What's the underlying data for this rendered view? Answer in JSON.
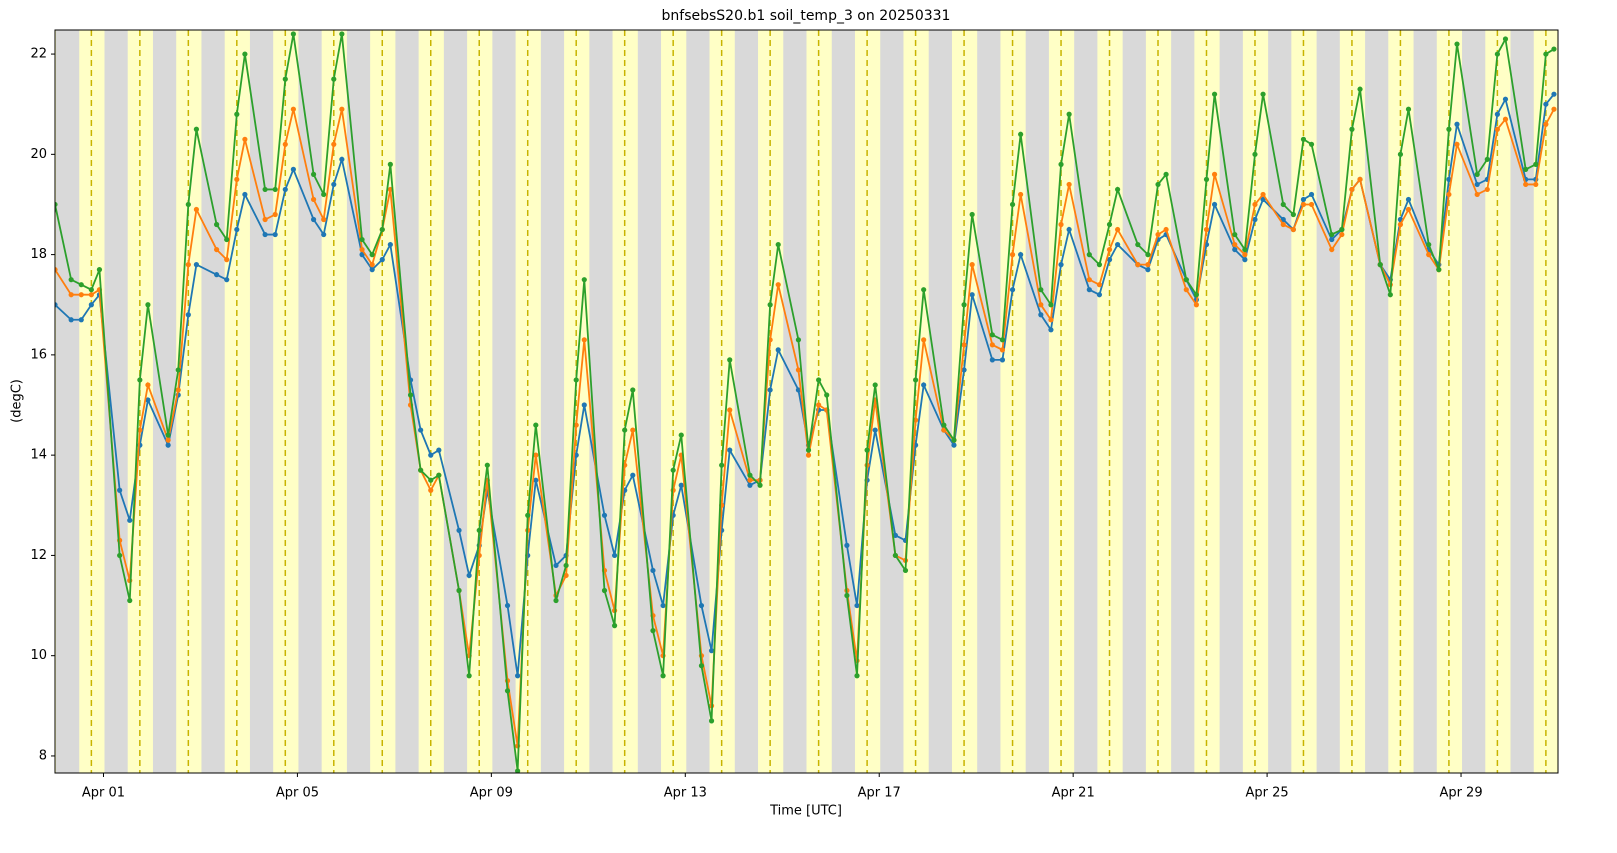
{
  "chart_data": {
    "type": "line",
    "title": "bnfsebsS20.b1 soil_temp_3 on 20250331",
    "xlabel": "Time [UTC]",
    "ylabel": "(degC)",
    "xlim": [
      "2025-03-31T00:00Z",
      "2025-05-01T00:00Z"
    ],
    "ylim": [
      7.66,
      22.48
    ],
    "yticks": [
      8,
      10,
      12,
      14,
      16,
      18,
      20,
      22
    ],
    "xticks": [
      {
        "value": "2025-04-01T00:00Z",
        "label": "Apr 01"
      },
      {
        "value": "2025-04-05T00:00Z",
        "label": "Apr 05"
      },
      {
        "value": "2025-04-09T00:00Z",
        "label": "Apr 09"
      },
      {
        "value": "2025-04-13T00:00Z",
        "label": "Apr 13"
      },
      {
        "value": "2025-04-17T00:00Z",
        "label": "Apr 17"
      },
      {
        "value": "2025-04-21T00:00Z",
        "label": "Apr 21"
      },
      {
        "value": "2025-04-25T00:00Z",
        "label": "Apr 25"
      },
      {
        "value": "2025-04-29T00:00Z",
        "label": "Apr 29"
      }
    ],
    "day_shading": {
      "sunrise_hour": 12,
      "sunset_hour": 24.5,
      "noon_hour": 18,
      "day_color": "#ffffc6",
      "night_color": "#d9d9d9",
      "noon_color": "#c8b400"
    },
    "x": [
      "2025-03-31T00:00Z",
      "2025-03-31T08:00Z",
      "2025-03-31T13:00Z",
      "2025-03-31T18:00Z",
      "2025-03-31T22:00Z",
      "2025-04-01T08:00Z",
      "2025-04-01T13:00Z",
      "2025-04-01T18:00Z",
      "2025-04-01T22:00Z",
      "2025-04-02T08:00Z",
      "2025-04-02T13:00Z",
      "2025-04-02T18:00Z",
      "2025-04-02T22:00Z",
      "2025-04-03T08:00Z",
      "2025-04-03T13:00Z",
      "2025-04-03T18:00Z",
      "2025-04-03T22:00Z",
      "2025-04-04T08:00Z",
      "2025-04-04T13:00Z",
      "2025-04-04T18:00Z",
      "2025-04-04T22:00Z",
      "2025-04-05T08:00Z",
      "2025-04-05T13:00Z",
      "2025-04-05T18:00Z",
      "2025-04-05T22:00Z",
      "2025-04-06T08:00Z",
      "2025-04-06T13:00Z",
      "2025-04-06T18:00Z",
      "2025-04-06T22:00Z",
      "2025-04-07T08:00Z",
      "2025-04-07T13:00Z",
      "2025-04-07T18:00Z",
      "2025-04-07T22:00Z",
      "2025-04-08T08:00Z",
      "2025-04-08T13:00Z",
      "2025-04-08T18:00Z",
      "2025-04-08T22:00Z",
      "2025-04-09T08:00Z",
      "2025-04-09T13:00Z",
      "2025-04-09T18:00Z",
      "2025-04-09T22:00Z",
      "2025-04-10T08:00Z",
      "2025-04-10T13:00Z",
      "2025-04-10T18:00Z",
      "2025-04-10T22:00Z",
      "2025-04-11T08:00Z",
      "2025-04-11T13:00Z",
      "2025-04-11T18:00Z",
      "2025-04-11T22:00Z",
      "2025-04-12T08:00Z",
      "2025-04-12T13:00Z",
      "2025-04-12T18:00Z",
      "2025-04-12T22:00Z",
      "2025-04-13T08:00Z",
      "2025-04-13T13:00Z",
      "2025-04-13T18:00Z",
      "2025-04-13T22:00Z",
      "2025-04-14T08:00Z",
      "2025-04-14T13:00Z",
      "2025-04-14T18:00Z",
      "2025-04-14T22:00Z",
      "2025-04-15T08:00Z",
      "2025-04-15T13:00Z",
      "2025-04-15T18:00Z",
      "2025-04-15T22:00Z",
      "2025-04-16T08:00Z",
      "2025-04-16T13:00Z",
      "2025-04-16T18:00Z",
      "2025-04-16T22:00Z",
      "2025-04-17T08:00Z",
      "2025-04-17T13:00Z",
      "2025-04-17T18:00Z",
      "2025-04-17T22:00Z",
      "2025-04-18T08:00Z",
      "2025-04-18T13:00Z",
      "2025-04-18T18:00Z",
      "2025-04-18T22:00Z",
      "2025-04-19T08:00Z",
      "2025-04-19T13:00Z",
      "2025-04-19T18:00Z",
      "2025-04-19T22:00Z",
      "2025-04-20T08:00Z",
      "2025-04-20T13:00Z",
      "2025-04-20T18:00Z",
      "2025-04-20T22:00Z",
      "2025-04-21T08:00Z",
      "2025-04-21T13:00Z",
      "2025-04-21T18:00Z",
      "2025-04-21T22:00Z",
      "2025-04-22T08:00Z",
      "2025-04-22T13:00Z",
      "2025-04-22T18:00Z",
      "2025-04-22T22:00Z",
      "2025-04-23T08:00Z",
      "2025-04-23T13:00Z",
      "2025-04-23T18:00Z",
      "2025-04-23T22:00Z",
      "2025-04-24T08:00Z",
      "2025-04-24T13:00Z",
      "2025-04-24T18:00Z",
      "2025-04-24T22:00Z",
      "2025-04-25T08:00Z",
      "2025-04-25T13:00Z",
      "2025-04-25T18:00Z",
      "2025-04-25T22:00Z",
      "2025-04-26T08:00Z",
      "2025-04-26T13:00Z",
      "2025-04-26T18:00Z",
      "2025-04-26T22:00Z",
      "2025-04-27T08:00Z",
      "2025-04-27T13:00Z",
      "2025-04-27T18:00Z",
      "2025-04-27T22:00Z",
      "2025-04-28T08:00Z",
      "2025-04-28T13:00Z",
      "2025-04-28T18:00Z",
      "2025-04-28T22:00Z",
      "2025-04-29T08:00Z",
      "2025-04-29T13:00Z",
      "2025-04-29T18:00Z",
      "2025-04-29T22:00Z",
      "2025-04-30T08:00Z",
      "2025-04-30T13:00Z",
      "2025-04-30T18:00Z",
      "2025-04-30T22:00Z"
    ],
    "series": [
      {
        "color": "#1f77b4",
        "values": [
          17.0,
          16.7,
          16.7,
          17.0,
          17.2,
          13.3,
          12.7,
          14.2,
          15.1,
          14.2,
          15.2,
          16.8,
          17.8,
          17.6,
          17.5,
          18.5,
          19.2,
          18.4,
          18.4,
          19.3,
          19.7,
          18.7,
          18.4,
          19.4,
          19.9,
          18.0,
          17.7,
          17.9,
          18.2,
          15.5,
          14.5,
          14.0,
          14.1,
          12.5,
          11.6,
          12.2,
          13.3,
          11.0,
          9.6,
          12.0,
          13.5,
          11.8,
          12.0,
          14.0,
          15.0,
          12.8,
          12.0,
          13.3,
          13.6,
          11.7,
          11.0,
          12.8,
          13.4,
          11.0,
          10.1,
          12.5,
          14.1,
          13.4,
          13.5,
          15.3,
          16.1,
          15.3,
          14.2,
          14.9,
          14.9,
          12.2,
          11.0,
          13.5,
          14.5,
          12.4,
          12.3,
          14.2,
          15.4,
          14.5,
          14.2,
          15.7,
          17.2,
          15.9,
          15.9,
          17.3,
          18.0,
          16.8,
          16.5,
          17.8,
          18.5,
          17.3,
          17.2,
          17.9,
          18.2,
          17.8,
          17.7,
          18.3,
          18.4,
          17.5,
          17.1,
          18.2,
          19.0,
          18.1,
          17.9,
          18.7,
          19.1,
          18.7,
          18.5,
          19.1,
          19.2,
          18.3,
          18.5,
          19.3,
          19.5,
          17.8,
          17.5,
          18.7,
          19.1,
          18.1,
          17.8,
          19.5,
          20.6,
          19.4,
          19.5,
          20.8,
          21.1,
          19.5,
          19.5,
          21.0,
          21.2
        ]
      },
      {
        "color": "#ff7f0e",
        "values": [
          17.7,
          17.2,
          17.2,
          17.2,
          17.3,
          12.3,
          11.5,
          14.5,
          15.4,
          14.3,
          15.3,
          17.8,
          18.9,
          18.1,
          17.9,
          19.5,
          20.3,
          18.7,
          18.8,
          20.2,
          20.9,
          19.1,
          18.7,
          20.2,
          20.9,
          18.1,
          17.8,
          18.5,
          19.3,
          15.0,
          13.7,
          13.3,
          13.6,
          11.3,
          10.0,
          12.0,
          13.5,
          9.5,
          8.2,
          12.5,
          14.0,
          11.2,
          11.6,
          14.6,
          16.3,
          11.7,
          10.9,
          13.8,
          14.5,
          10.8,
          10.0,
          13.3,
          14.0,
          10.0,
          9.0,
          13.0,
          14.9,
          13.5,
          13.5,
          16.3,
          17.4,
          15.7,
          14.0,
          15.0,
          14.9,
          11.3,
          9.9,
          13.8,
          15.1,
          12.0,
          11.9,
          14.7,
          16.3,
          14.5,
          14.3,
          16.2,
          17.8,
          16.2,
          16.1,
          18.0,
          19.2,
          17.0,
          16.7,
          18.6,
          19.4,
          17.5,
          17.4,
          18.1,
          18.5,
          17.8,
          17.8,
          18.4,
          18.5,
          17.3,
          17.0,
          18.5,
          19.6,
          18.2,
          18.0,
          19.0,
          19.2,
          18.6,
          18.5,
          19.0,
          19.0,
          18.1,
          18.4,
          19.3,
          19.5,
          17.8,
          17.4,
          18.6,
          18.9,
          18.0,
          17.7,
          19.2,
          20.2,
          19.2,
          19.3,
          20.5,
          20.7,
          19.4,
          19.4,
          20.6,
          20.9
        ]
      },
      {
        "color": "#2ca02c",
        "values": [
          19.0,
          17.5,
          17.4,
          17.3,
          17.7,
          12.0,
          11.1,
          15.5,
          17.0,
          14.4,
          15.7,
          19.0,
          20.5,
          18.6,
          18.3,
          20.8,
          22.0,
          19.3,
          19.3,
          21.5,
          22.4,
          19.6,
          19.2,
          21.5,
          22.4,
          18.3,
          18.0,
          18.5,
          19.8,
          15.2,
          13.7,
          13.5,
          13.6,
          11.3,
          9.6,
          12.5,
          13.8,
          9.3,
          7.7,
          12.8,
          14.6,
          11.1,
          11.8,
          15.5,
          17.5,
          11.3,
          10.6,
          14.5,
          15.3,
          10.5,
          9.6,
          13.7,
          14.4,
          9.8,
          8.7,
          13.8,
          15.9,
          13.6,
          13.4,
          17.0,
          18.2,
          16.3,
          14.1,
          15.5,
          15.2,
          11.2,
          9.6,
          14.1,
          15.4,
          12.0,
          11.7,
          15.5,
          17.3,
          14.6,
          14.3,
          17.0,
          18.8,
          16.4,
          16.3,
          19.0,
          20.4,
          17.3,
          17.0,
          19.8,
          20.8,
          18.0,
          17.8,
          18.6,
          19.3,
          18.2,
          18.0,
          19.4,
          19.6,
          17.5,
          17.2,
          19.5,
          21.2,
          18.4,
          18.1,
          20.0,
          21.2,
          19.0,
          18.8,
          20.3,
          20.2,
          18.4,
          18.5,
          20.5,
          21.3,
          17.8,
          17.2,
          20.0,
          20.9,
          18.2,
          17.7,
          20.5,
          22.2,
          19.6,
          19.9,
          22.0,
          22.3,
          19.7,
          19.8,
          22.0,
          22.1
        ]
      }
    ]
  }
}
